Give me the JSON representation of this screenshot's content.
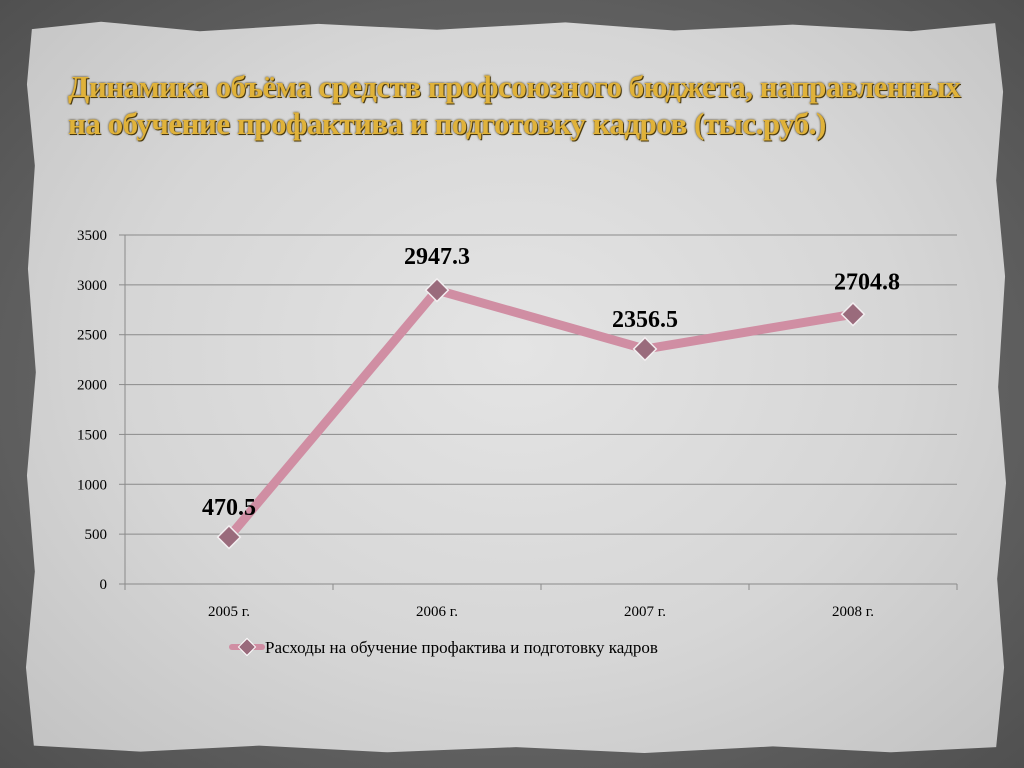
{
  "slide": {
    "title": "Динамика объёма средств профсоюзного бюджета, направленных на обучение профактива и подготовку кадров (тыс.руб.)"
  },
  "chart_data": {
    "type": "line",
    "title": "",
    "xlabel": "",
    "ylabel": "",
    "categories": [
      "2005 г.",
      "2006 г.",
      "2007 г.",
      "2008 г."
    ],
    "series": [
      {
        "name": "Расходы на обучение профактива и подготовку кадров",
        "values": [
          470.5,
          2947.3,
          2356.5,
          2704.8
        ],
        "color": "#d08ea3",
        "marker_color": "#9a6b7c"
      }
    ],
    "data_labels": [
      "470.5",
      "2947.3",
      "2356.5",
      "2704.8"
    ],
    "ylim": [
      0,
      3500
    ],
    "yticks": [
      0,
      500,
      1000,
      1500,
      2000,
      2500,
      3000,
      3500
    ],
    "grid": true,
    "legend_position": "bottom"
  }
}
